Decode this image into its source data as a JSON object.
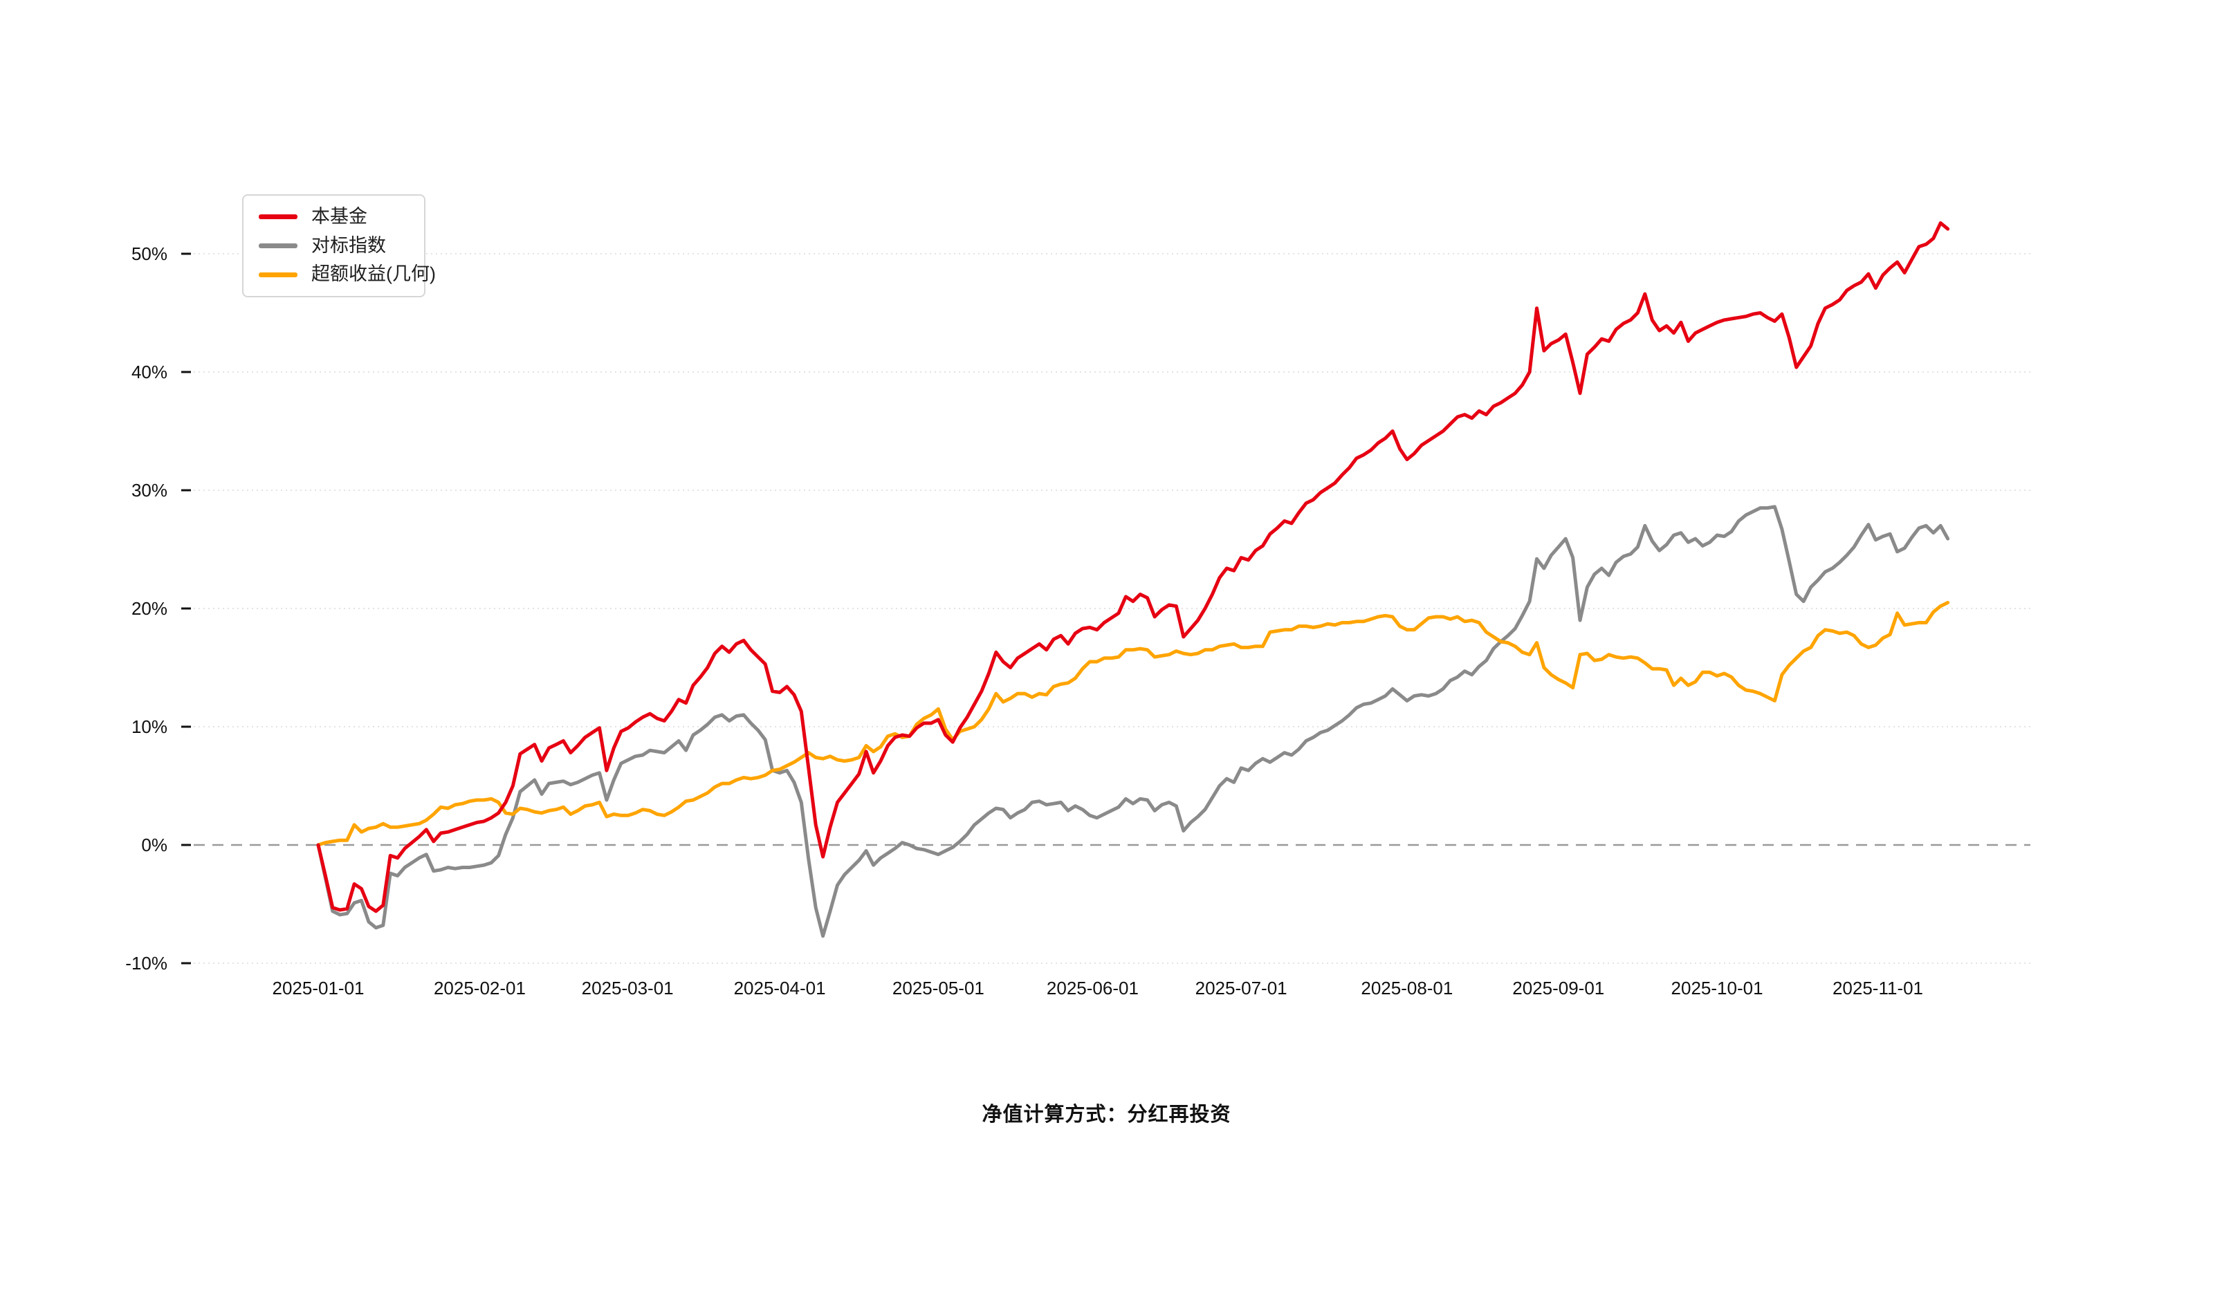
{
  "caption": "净值计算方式：分红再投资",
  "chart_data": {
    "type": "line",
    "title": "",
    "xlabel": "",
    "ylabel": "",
    "grid": true,
    "legend_position": "top-left",
    "ylim": [
      -13,
      56
    ],
    "yticks": [
      {
        "label": "50%",
        "value": 50
      },
      {
        "label": "40%",
        "value": 40
      },
      {
        "label": "30%",
        "value": 30
      },
      {
        "label": "20%",
        "value": 20
      },
      {
        "label": "10%",
        "value": 10
      },
      {
        "label": "0%",
        "value": 0
      },
      {
        "label": "-10%",
        "value": -10
      }
    ],
    "xticks": [
      {
        "label": "2025-01-01",
        "i": 0
      },
      {
        "label": "2025-02-01",
        "i": 22.4
      },
      {
        "label": "2025-03-01",
        "i": 42.9
      },
      {
        "label": "2025-04-01",
        "i": 64
      },
      {
        "label": "2025-05-01",
        "i": 86
      },
      {
        "label": "2025-06-01",
        "i": 107.4
      },
      {
        "label": "2025-07-01",
        "i": 128
      },
      {
        "label": "2025-08-01",
        "i": 151
      },
      {
        "label": "2025-09-01",
        "i": 172
      },
      {
        "label": "2025-10-01",
        "i": 194
      },
      {
        "label": "2025-11-01",
        "i": 216.3
      }
    ],
    "x_dates": [
      "01-01",
      "01-02",
      "01-03",
      "01-06",
      "01-07",
      "01-08",
      "01-09",
      "01-10",
      "01-13",
      "01-14",
      "01-15",
      "01-16",
      "01-17",
      "01-20",
      "01-21",
      "01-22",
      "01-23",
      "01-24",
      "01-27",
      "01-28",
      "01-29",
      "01-30",
      "01-31",
      "02-03",
      "02-04",
      "02-05",
      "02-06",
      "02-07",
      "02-10",
      "02-11",
      "02-12",
      "02-13",
      "02-14",
      "02-17",
      "02-18",
      "02-19",
      "02-20",
      "02-21",
      "02-24",
      "02-25",
      "02-26",
      "02-27",
      "02-28",
      "03-03",
      "03-04",
      "03-05",
      "03-06",
      "03-07",
      "03-10",
      "03-11",
      "03-12",
      "03-13",
      "03-14",
      "03-17",
      "03-18",
      "03-19",
      "03-20",
      "03-21",
      "03-24",
      "03-25",
      "03-26",
      "03-27",
      "03-28",
      "03-31",
      "04-01",
      "04-02",
      "04-03",
      "04-04",
      "04-07",
      "04-08",
      "04-09",
      "04-10",
      "04-11",
      "04-14",
      "04-15",
      "04-16",
      "04-17",
      "04-18",
      "04-21",
      "04-22",
      "04-23",
      "04-24",
      "04-25",
      "04-28",
      "04-29",
      "04-30",
      "05-01",
      "05-02",
      "05-05",
      "05-06",
      "05-07",
      "05-08",
      "05-09",
      "05-12",
      "05-13",
      "05-14",
      "05-15",
      "05-16",
      "05-19",
      "05-20",
      "05-21",
      "05-22",
      "05-23",
      "05-27",
      "05-28",
      "05-29",
      "05-30",
      "06-02",
      "06-03",
      "06-04",
      "06-05",
      "06-06",
      "06-09",
      "06-10",
      "06-11",
      "06-12",
      "06-13",
      "06-16",
      "06-17",
      "06-18",
      "06-19",
      "06-20",
      "06-23",
      "06-24",
      "06-25",
      "06-26",
      "06-27",
      "06-30",
      "07-01",
      "07-02",
      "07-03",
      "07-04",
      "07-07",
      "07-08",
      "07-09",
      "07-10",
      "07-11",
      "07-14",
      "07-15",
      "07-16",
      "07-17",
      "07-18",
      "07-21",
      "07-22",
      "07-23",
      "07-24",
      "07-25",
      "07-28",
      "07-29",
      "07-30",
      "07-31",
      "08-01",
      "08-04",
      "08-05",
      "08-06",
      "08-07",
      "08-08",
      "08-11",
      "08-12",
      "08-13",
      "08-14",
      "08-15",
      "08-18",
      "08-19",
      "08-20",
      "08-21",
      "08-22",
      "08-25",
      "08-26",
      "08-27",
      "08-28",
      "08-29",
      "09-01",
      "09-02",
      "09-03",
      "09-04",
      "09-05",
      "09-08",
      "09-09",
      "09-10",
      "09-11",
      "09-12",
      "09-15",
      "09-16",
      "09-17",
      "09-18",
      "09-19",
      "09-22",
      "09-23",
      "09-24",
      "09-25",
      "09-26",
      "09-29",
      "09-30",
      "10-01",
      "10-02",
      "10-03",
      "10-06",
      "10-07",
      "10-08",
      "10-09",
      "10-10",
      "10-13",
      "10-14",
      "10-15",
      "10-16",
      "10-17",
      "10-20",
      "10-21",
      "10-22",
      "10-23",
      "10-24",
      "10-27",
      "10-28",
      "10-29",
      "10-30",
      "10-31",
      "11-03",
      "11-04",
      "11-05",
      "11-06",
      "11-07",
      "11-10",
      "11-11",
      "11-12",
      "11-13",
      "11-14"
    ],
    "series": [
      {
        "name": "本基金",
        "color": "#e60012",
        "width": 5,
        "values": [
          0,
          -2.6,
          -5.3,
          -5.5,
          -5.4,
          -3.3,
          -3.7,
          -5.2,
          -5.6,
          -5.1,
          -0.9,
          -1.1,
          -0.3,
          0.2,
          0.7,
          1.3,
          0.3,
          1.0,
          1.1,
          1.3,
          1.5,
          1.7,
          1.9,
          2.0,
          2.3,
          2.7,
          3.6,
          5.0,
          7.7,
          8.1,
          8.5,
          7.1,
          8.2,
          8.5,
          8.8,
          7.8,
          8.4,
          9.1,
          9.5,
          9.9,
          6.3,
          8.2,
          9.6,
          9.9,
          10.4,
          10.8,
          11.1,
          10.7,
          10.5,
          11.3,
          12.3,
          12.0,
          13.5,
          14.2,
          15.0,
          16.2,
          16.8,
          16.3,
          17.0,
          17.3,
          16.5,
          15.9,
          15.3,
          13.0,
          12.9,
          13.4,
          12.7,
          11.3,
          6.5,
          1.7,
          -1.0,
          1.5,
          3.6,
          4.4,
          5.2,
          6.0,
          7.9,
          6.1,
          7.1,
          8.4,
          9.1,
          9.3,
          9.2,
          9.9,
          10.3,
          10.3,
          10.6,
          9.3,
          8.7,
          9.9,
          10.8,
          11.9,
          13.0,
          14.5,
          16.3,
          15.5,
          15.0,
          15.8,
          16.2,
          16.6,
          17.0,
          16.5,
          17.4,
          17.7,
          17.0,
          17.9,
          18.3,
          18.4,
          18.2,
          18.8,
          19.2,
          19.6,
          21.0,
          20.6,
          21.2,
          20.9,
          19.3,
          19.9,
          20.3,
          20.2,
          17.6,
          18.3,
          19.0,
          20.0,
          21.2,
          22.6,
          23.4,
          23.2,
          24.3,
          24.1,
          24.9,
          25.3,
          26.3,
          26.8,
          27.4,
          27.2,
          28.1,
          28.9,
          29.2,
          29.8,
          30.2,
          30.6,
          31.3,
          31.9,
          32.7,
          33.0,
          33.4,
          34.0,
          34.4,
          35.0,
          33.5,
          32.6,
          33.1,
          33.8,
          34.2,
          34.6,
          35.0,
          35.6,
          36.2,
          36.4,
          36.1,
          36.7,
          36.4,
          37.1,
          37.4,
          37.8,
          38.2,
          38.9,
          40.0,
          45.4,
          41.8,
          42.4,
          42.7,
          43.2,
          40.8,
          38.2,
          41.5,
          42.1,
          42.8,
          42.6,
          43.6,
          44.1,
          44.4,
          45.0,
          46.6,
          44.4,
          43.5,
          43.9,
          43.3,
          44.2,
          42.6,
          43.3,
          43.6,
          43.9,
          44.2,
          44.4,
          44.5,
          44.6,
          44.7,
          44.9,
          45.0,
          44.6,
          44.3,
          44.9,
          42.9,
          40.4,
          41.3,
          42.2,
          44.1,
          45.4,
          45.7,
          46.1,
          46.9,
          47.3,
          47.6,
          48.3,
          47.1,
          48.2,
          48.8,
          49.3,
          48.4,
          49.5,
          50.6,
          50.8,
          51.3,
          52.6,
          52.1
        ]
      },
      {
        "name": "对标指数",
        "color": "#8a8a8a",
        "width": 5,
        "values": [
          0,
          -2.8,
          -5.6,
          -5.9,
          -5.8,
          -4.9,
          -4.7,
          -6.5,
          -7.0,
          -6.8,
          -2.4,
          -2.6,
          -1.9,
          -1.5,
          -1.1,
          -0.8,
          -2.2,
          -2.1,
          -1.9,
          -2.0,
          -1.9,
          -1.9,
          -1.8,
          -1.7,
          -1.5,
          -0.9,
          0.9,
          2.3,
          4.5,
          5.0,
          5.5,
          4.3,
          5.2,
          5.3,
          5.4,
          5.1,
          5.3,
          5.6,
          5.9,
          6.1,
          3.8,
          5.5,
          6.9,
          7.2,
          7.5,
          7.6,
          8.0,
          7.9,
          7.8,
          8.3,
          8.8,
          8.0,
          9.3,
          9.7,
          10.2,
          10.8,
          11.0,
          10.5,
          10.9,
          11.0,
          10.3,
          9.7,
          8.9,
          6.3,
          6.1,
          6.3,
          5.3,
          3.6,
          -1.2,
          -5.3,
          -7.7,
          -5.6,
          -3.4,
          -2.5,
          -1.9,
          -1.3,
          -0.5,
          -1.7,
          -1.1,
          -0.7,
          -0.3,
          0.2,
          0.0,
          -0.3,
          -0.4,
          -0.6,
          -0.8,
          -0.5,
          -0.2,
          0.3,
          0.9,
          1.7,
          2.2,
          2.7,
          3.1,
          3.0,
          2.3,
          2.7,
          3.0,
          3.6,
          3.7,
          3.4,
          3.5,
          3.6,
          2.9,
          3.3,
          3.0,
          2.5,
          2.3,
          2.6,
          2.9,
          3.2,
          3.9,
          3.5,
          3.9,
          3.8,
          2.9,
          3.4,
          3.6,
          3.3,
          1.2,
          1.9,
          2.4,
          3.0,
          4.0,
          5.0,
          5.6,
          5.3,
          6.5,
          6.3,
          6.9,
          7.3,
          7.0,
          7.4,
          7.8,
          7.6,
          8.1,
          8.8,
          9.1,
          9.5,
          9.7,
          10.1,
          10.5,
          11.0,
          11.6,
          11.9,
          12.0,
          12.3,
          12.6,
          13.2,
          12.7,
          12.2,
          12.6,
          12.7,
          12.6,
          12.8,
          13.2,
          13.9,
          14.2,
          14.7,
          14.4,
          15.1,
          15.6,
          16.6,
          17.2,
          17.7,
          18.3,
          19.4,
          20.6,
          24.2,
          23.4,
          24.5,
          25.2,
          25.9,
          24.3,
          19.0,
          21.8,
          22.9,
          23.4,
          22.8,
          23.9,
          24.4,
          24.6,
          25.2,
          27.0,
          25.7,
          24.9,
          25.4,
          26.2,
          26.4,
          25.6,
          25.9,
          25.3,
          25.6,
          26.2,
          26.1,
          26.5,
          27.4,
          27.9,
          28.2,
          28.5,
          28.5,
          28.6,
          26.7,
          24.0,
          21.2,
          20.6,
          21.8,
          22.4,
          23.1,
          23.4,
          23.9,
          24.5,
          25.2,
          26.2,
          27.1,
          25.8,
          26.1,
          26.3,
          24.8,
          25.1,
          26.0,
          26.8,
          27.0,
          26.4,
          27.0,
          25.9
        ]
      },
      {
        "name": "超额收益(几何)",
        "color": "#ffa400",
        "width": 5,
        "values": [
          0,
          0.2,
          0.3,
          0.4,
          0.4,
          1.7,
          1.1,
          1.4,
          1.5,
          1.8,
          1.5,
          1.5,
          1.6,
          1.7,
          1.8,
          2.1,
          2.6,
          3.2,
          3.1,
          3.4,
          3.5,
          3.7,
          3.8,
          3.8,
          3.9,
          3.6,
          2.7,
          2.6,
          3.1,
          3.0,
          2.8,
          2.7,
          2.9,
          3.0,
          3.2,
          2.6,
          2.9,
          3.3,
          3.4,
          3.6,
          2.4,
          2.6,
          2.5,
          2.5,
          2.7,
          3.0,
          2.9,
          2.6,
          2.5,
          2.8,
          3.2,
          3.7,
          3.8,
          4.1,
          4.4,
          4.9,
          5.2,
          5.2,
          5.5,
          5.7,
          5.6,
          5.7,
          5.9,
          6.3,
          6.4,
          6.7,
          7.0,
          7.4,
          7.8,
          7.4,
          7.3,
          7.5,
          7.2,
          7.1,
          7.2,
          7.4,
          8.4,
          7.9,
          8.3,
          9.2,
          9.4,
          9.1,
          9.2,
          10.2,
          10.7,
          11.0,
          11.5,
          9.8,
          8.9,
          9.6,
          9.8,
          10.0,
          10.6,
          11.5,
          12.8,
          12.1,
          12.4,
          12.8,
          12.8,
          12.5,
          12.8,
          12.7,
          13.4,
          13.6,
          13.7,
          14.1,
          14.9,
          15.5,
          15.5,
          15.8,
          15.8,
          15.9,
          16.5,
          16.5,
          16.6,
          16.5,
          15.9,
          16.0,
          16.1,
          16.4,
          16.2,
          16.1,
          16.2,
          16.5,
          16.5,
          16.8,
          16.9,
          17.0,
          16.7,
          16.7,
          16.8,
          16.8,
          18.0,
          18.1,
          18.2,
          18.2,
          18.5,
          18.5,
          18.4,
          18.5,
          18.7,
          18.6,
          18.8,
          18.8,
          18.9,
          18.9,
          19.1,
          19.3,
          19.4,
          19.3,
          18.5,
          18.2,
          18.2,
          18.7,
          19.2,
          19.3,
          19.3,
          19.1,
          19.3,
          18.9,
          19.0,
          18.8,
          18.0,
          17.6,
          17.2,
          17.1,
          16.8,
          16.3,
          16.1,
          17.1,
          15.0,
          14.4,
          14.0,
          13.7,
          13.3,
          16.1,
          16.2,
          15.6,
          15.7,
          16.1,
          15.9,
          15.8,
          15.9,
          15.8,
          15.4,
          14.9,
          14.9,
          14.8,
          13.5,
          14.1,
          13.5,
          13.8,
          14.6,
          14.6,
          14.3,
          14.5,
          14.2,
          13.5,
          13.1,
          13.0,
          12.8,
          12.5,
          12.2,
          14.4,
          15.2,
          15.8,
          16.4,
          16.7,
          17.7,
          18.2,
          18.1,
          17.9,
          18.0,
          17.7,
          17.0,
          16.7,
          16.9,
          17.5,
          17.8,
          19.6,
          18.6,
          18.7,
          18.8,
          18.8,
          19.7,
          20.2,
          20.5
        ]
      }
    ]
  }
}
